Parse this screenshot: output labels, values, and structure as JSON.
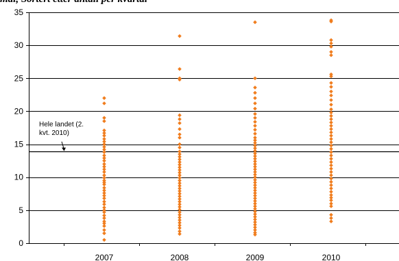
{
  "chart_data": {
    "type": "scatter",
    "title": "mål, Sortert etter antall per kvartal",
    "xlabel": "",
    "ylabel": "",
    "ylim": [
      0,
      35
    ],
    "yticks": [
      0,
      5,
      10,
      15,
      20,
      25,
      30,
      35
    ],
    "categories": [
      "2007",
      "2008",
      "2009",
      "2010"
    ],
    "grid": true,
    "colors": {
      "points": "#F07D1E",
      "gridline": "#000000",
      "reference_line": "#000000"
    },
    "reference_line": {
      "value": 13.9,
      "label_lines": [
        "Hele landet (2.",
        "kvt. 2010)"
      ]
    },
    "series": [
      {
        "category": "2007",
        "values": [
          0.5,
          1.5,
          2.0,
          2.6,
          3.0,
          3.3,
          3.8,
          4.2,
          4.7,
          5.0,
          5.4,
          5.9,
          6.3,
          6.8,
          7.2,
          7.6,
          8.0,
          8.4,
          8.9,
          9.2,
          9.5,
          9.9,
          10.3,
          10.8,
          11.2,
          11.6,
          12.0,
          12.5,
          12.9,
          13.3,
          13.8,
          14.2,
          14.6,
          15.0,
          15.4,
          15.8,
          16.3,
          16.7,
          17.1,
          18.5,
          19.0,
          21.2,
          22.0
        ]
      },
      {
        "category": "2008",
        "values": [
          1.4,
          1.8,
          2.3,
          2.7,
          3.1,
          3.5,
          3.9,
          4.3,
          4.7,
          5.1,
          5.5,
          5.9,
          6.3,
          6.7,
          7.1,
          7.5,
          7.9,
          8.3,
          8.7,
          9.1,
          9.5,
          9.9,
          10.3,
          10.7,
          11.1,
          11.5,
          11.9,
          12.3,
          12.7,
          13.1,
          13.5,
          13.9,
          14.5,
          15.0,
          16.0,
          16.5,
          17.3,
          18.2,
          18.8,
          19.4,
          24.8,
          25.0,
          26.4,
          31.4
        ]
      },
      {
        "category": "2009",
        "values": [
          1.3,
          1.6,
          2.0,
          2.4,
          2.8,
          3.2,
          3.6,
          4.0,
          4.4,
          4.8,
          5.2,
          5.6,
          6.0,
          6.4,
          6.8,
          7.2,
          7.6,
          8.0,
          8.4,
          8.8,
          9.2,
          9.6,
          10.0,
          10.4,
          10.8,
          11.2,
          11.6,
          12.0,
          12.4,
          12.8,
          13.2,
          13.6,
          14.0,
          14.4,
          14.8,
          15.2,
          15.6,
          16.0,
          16.6,
          17.2,
          17.8,
          18.4,
          19.0,
          19.6,
          20.4,
          21.2,
          22.0,
          22.8,
          23.6,
          25.0,
          33.5
        ]
      },
      {
        "category": "2010",
        "values": [
          3.3,
          3.8,
          4.3,
          5.6,
          6.0,
          6.5,
          6.9,
          7.3,
          7.8,
          8.3,
          8.8,
          9.3,
          9.8,
          10.3,
          10.8,
          11.3,
          11.8,
          12.3,
          12.8,
          13.3,
          13.8,
          14.3,
          14.8,
          15.3,
          15.8,
          16.3,
          16.8,
          17.3,
          17.8,
          18.3,
          18.8,
          19.3,
          19.8,
          20.3,
          21.0,
          21.7,
          22.4,
          23.0,
          23.7,
          24.3,
          25.3,
          25.6,
          28.5,
          29.0,
          29.8,
          30.3,
          30.8,
          33.6,
          33.8
        ]
      }
    ]
  }
}
